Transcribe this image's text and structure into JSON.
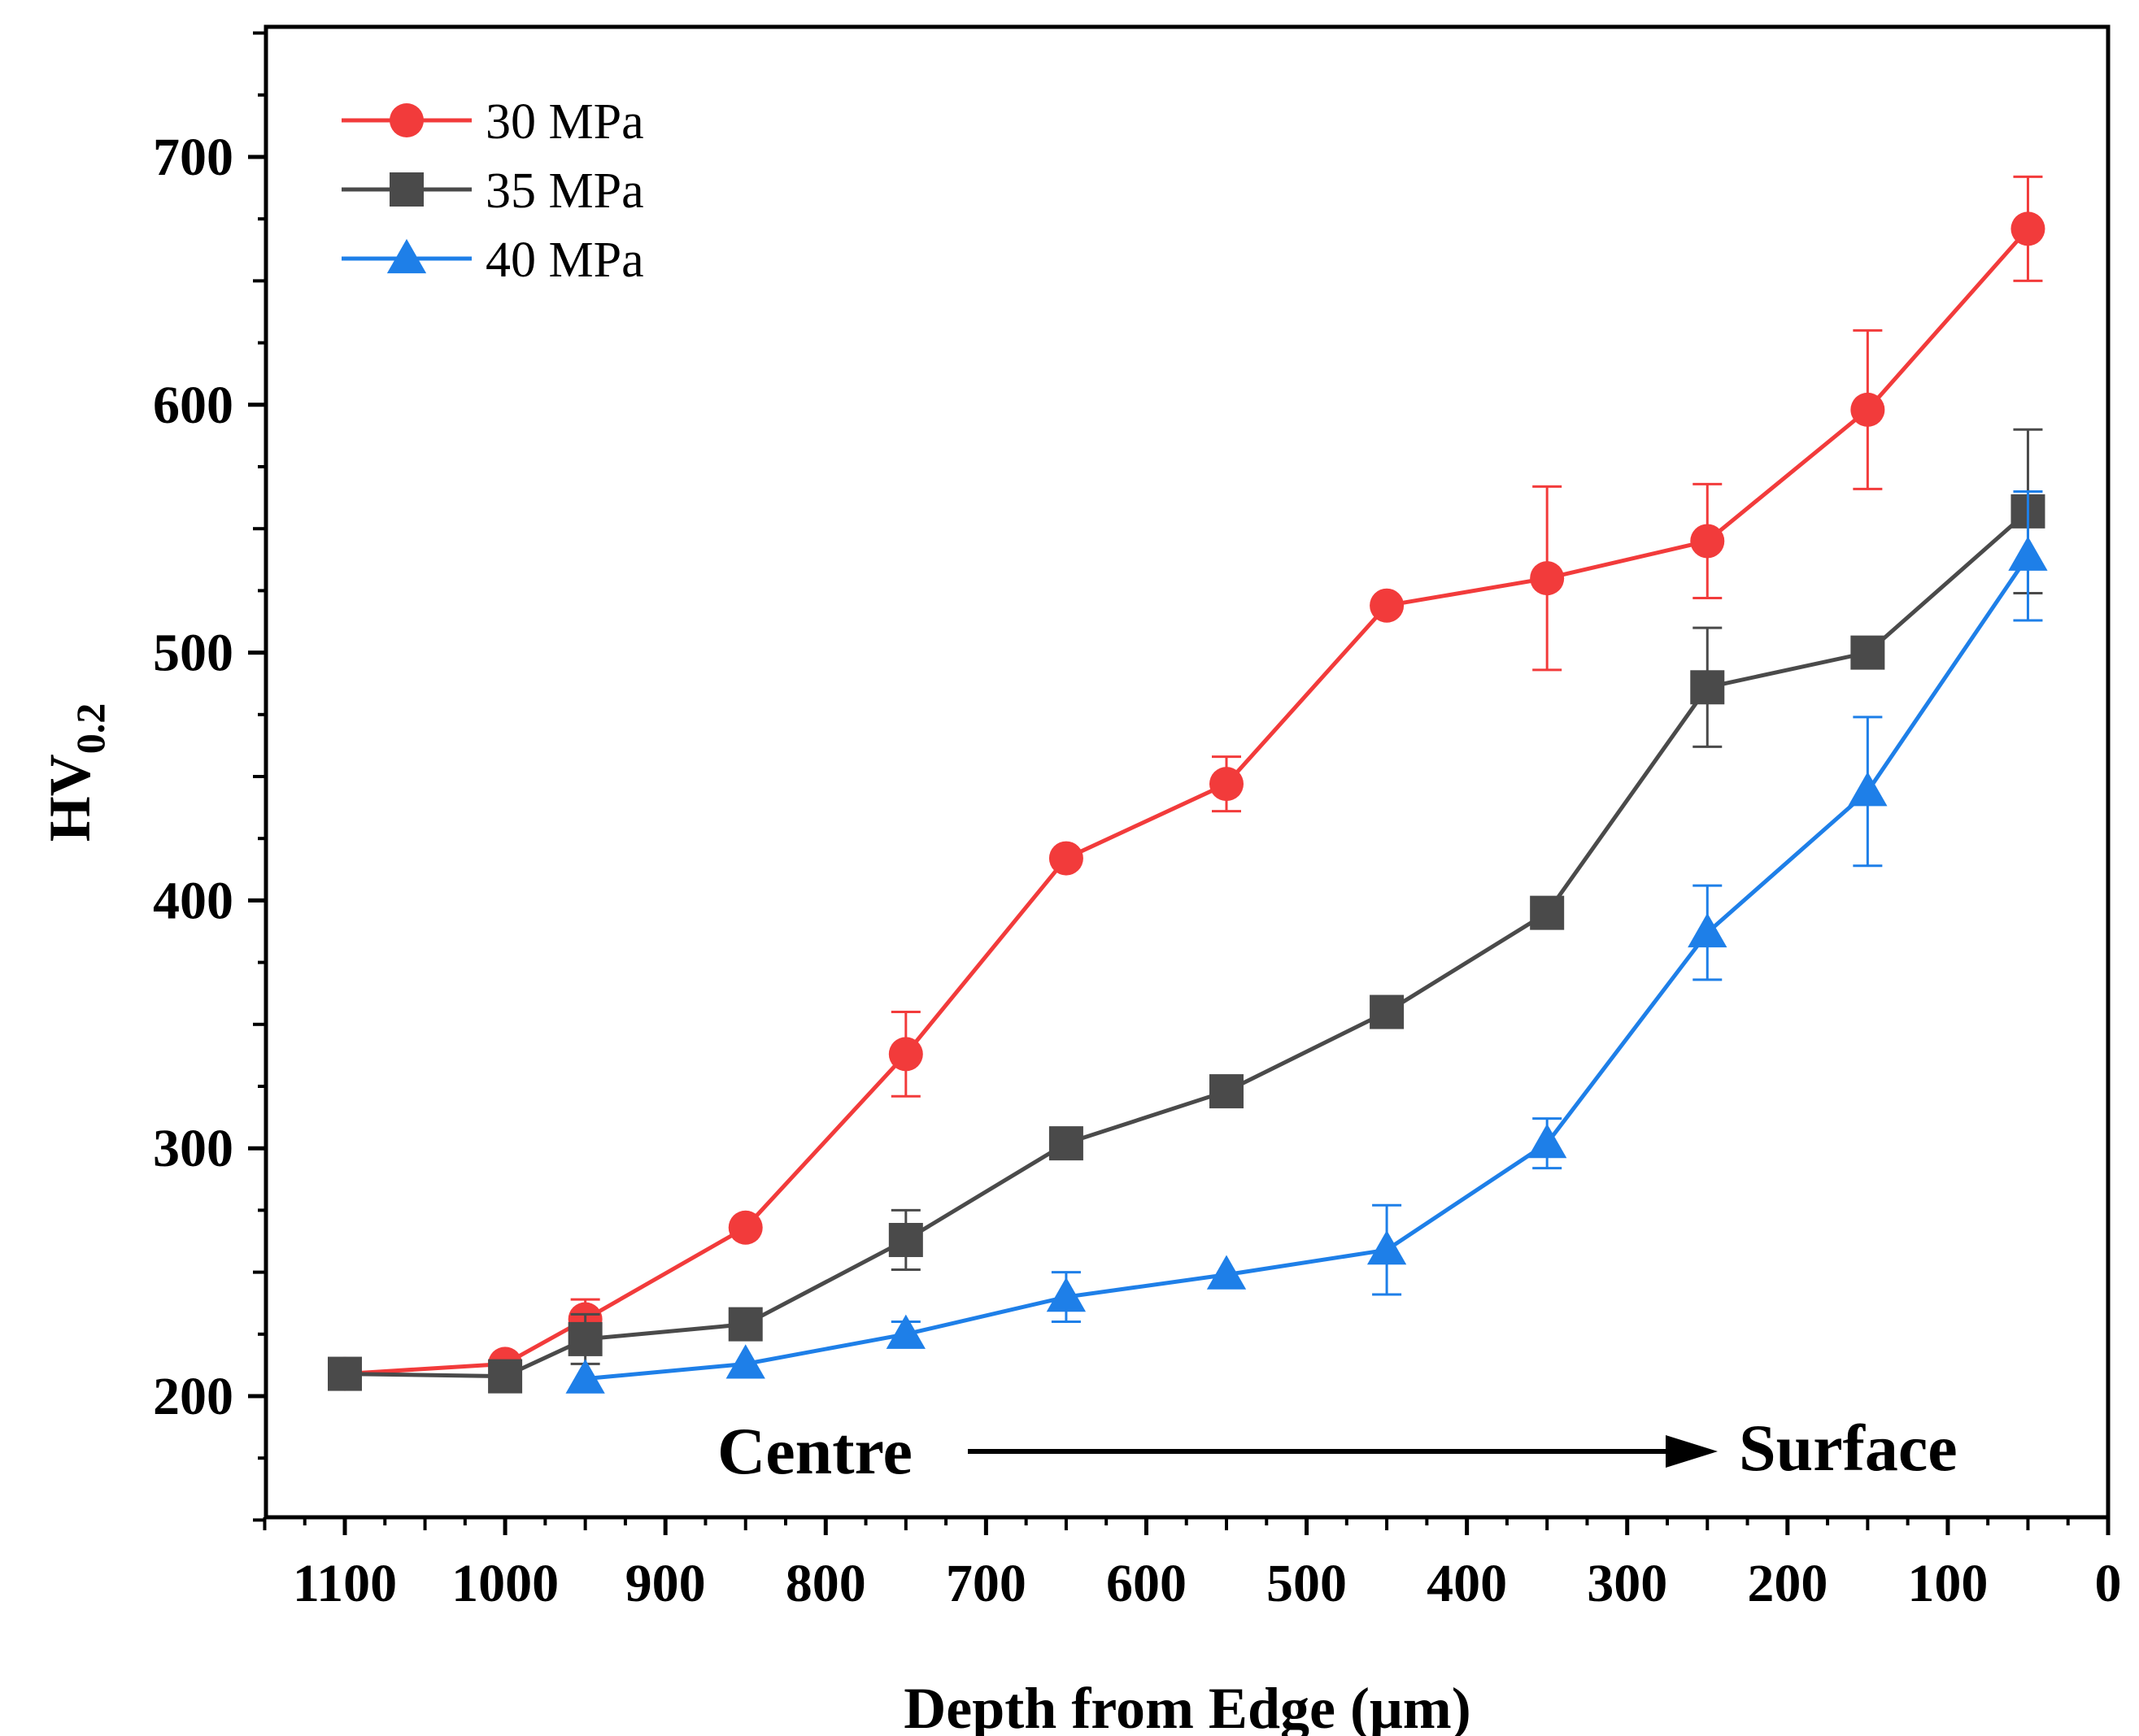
{
  "chart_data": {
    "type": "line",
    "title": "",
    "xlabel": "Depth from Edge (μm)",
    "ylabel_main": "HV",
    "ylabel_sub": "0.2",
    "xlim": [
      1150,
      0
    ],
    "ylim": [
      150,
      750
    ],
    "x_ticks": [
      1100,
      1000,
      900,
      800,
      700,
      600,
      500,
      400,
      300,
      200,
      100,
      0
    ],
    "y_ticks": [
      200,
      300,
      400,
      500,
      600,
      700
    ],
    "x_tick_labels": [
      "1100",
      "1000",
      "900",
      "800",
      "700",
      "600",
      "500",
      "400",
      "300",
      "200",
      "100",
      "0"
    ],
    "y_tick_labels": [
      "200",
      "300",
      "400",
      "500",
      "600",
      "700"
    ],
    "legend_position": "top-left",
    "series": [
      {
        "name": "30 MPa",
        "color": "#f23b3b",
        "marker": "circle",
        "x": [
          1100,
          1000,
          950,
          850,
          750,
          650,
          550,
          450,
          350,
          250,
          150,
          50
        ],
        "y": [
          209,
          213,
          231,
          268,
          338,
          417,
          447,
          519,
          530,
          545,
          598,
          671
        ],
        "err": [
          0,
          0,
          8,
          0,
          17,
          0,
          11,
          0,
          37,
          23,
          32,
          21
        ]
      },
      {
        "name": "35 MPa",
        "color": "#4a4a4a",
        "marker": "square",
        "x": [
          1100,
          1000,
          950,
          850,
          750,
          650,
          550,
          450,
          350,
          250,
          150,
          50
        ],
        "y": [
          209,
          208,
          223,
          229,
          263,
          302,
          323,
          355,
          395,
          486,
          500,
          557
        ],
        "err": [
          0,
          0,
          10,
          0,
          12,
          0,
          0,
          0,
          0,
          24,
          0,
          33
        ]
      },
      {
        "name": "40 MPa",
        "color": "#1e7fe8",
        "marker": "triangle",
        "x": [
          950,
          850,
          750,
          650,
          550,
          450,
          350,
          250,
          150,
          50
        ],
        "y": [
          207,
          213,
          225,
          240,
          249,
          259,
          302,
          387,
          444,
          539
        ],
        "err": [
          0,
          0,
          5,
          10,
          0,
          18,
          10,
          19,
          30,
          26
        ]
      }
    ],
    "annotation": {
      "left": "Centre",
      "right": "Surface",
      "arrow_direction": "right"
    }
  }
}
